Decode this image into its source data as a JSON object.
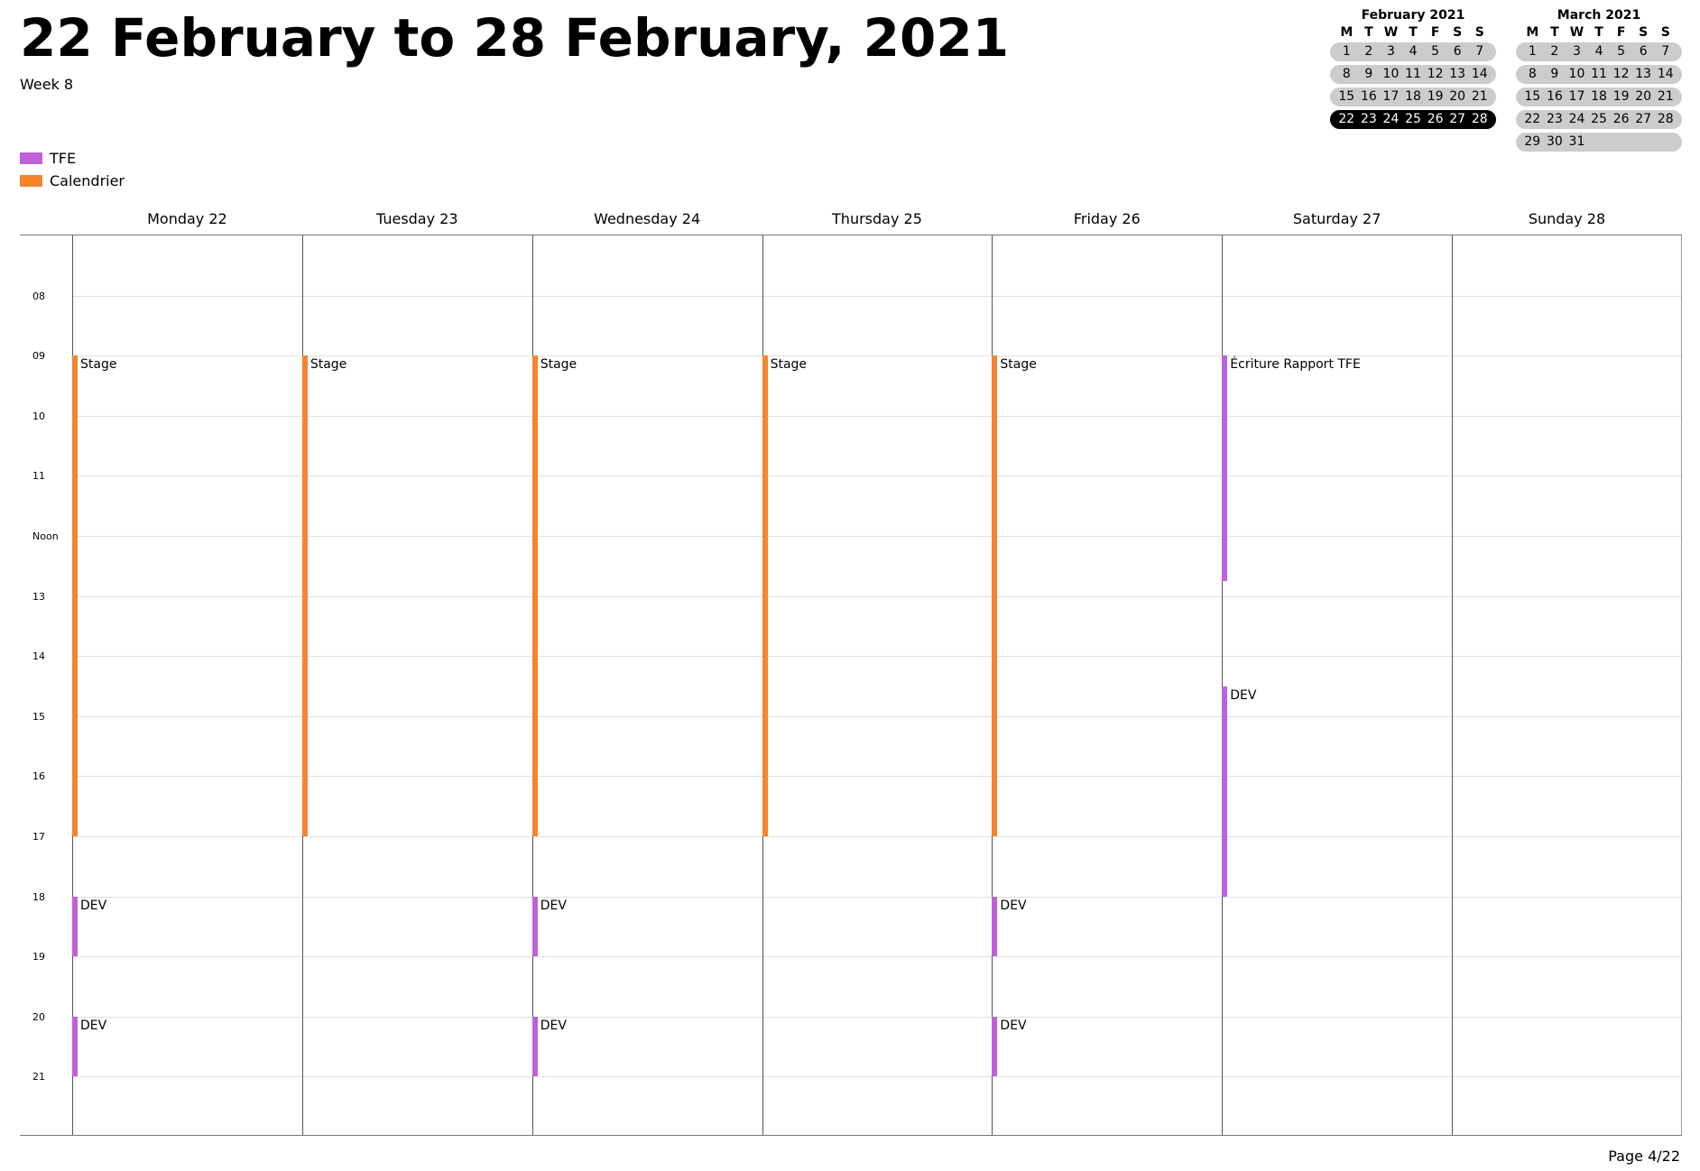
{
  "header": {
    "title": "22 February to 28 February, 2021",
    "subtitle": "Week 8"
  },
  "legend": [
    {
      "label": "TFE",
      "color": "#c061d9"
    },
    {
      "label": "Calendrier",
      "color": "#f5842f"
    }
  ],
  "mini_calendars": [
    {
      "title": "February 2021",
      "dow": [
        "M",
        "T",
        "W",
        "T",
        "F",
        "S",
        "S"
      ],
      "weeks": [
        [
          "1",
          "2",
          "3",
          "4",
          "5",
          "6",
          "7"
        ],
        [
          "8",
          "9",
          "10",
          "11",
          "12",
          "13",
          "14"
        ],
        [
          "15",
          "16",
          "17",
          "18",
          "19",
          "20",
          "21"
        ],
        [
          "22",
          "23",
          "24",
          "25",
          "26",
          "27",
          "28"
        ]
      ],
      "current_week": 3
    },
    {
      "title": "March 2021",
      "dow": [
        "M",
        "T",
        "W",
        "T",
        "F",
        "S",
        "S"
      ],
      "weeks": [
        [
          "1",
          "2",
          "3",
          "4",
          "5",
          "6",
          "7"
        ],
        [
          "8",
          "9",
          "10",
          "11",
          "12",
          "13",
          "14"
        ],
        [
          "15",
          "16",
          "17",
          "18",
          "19",
          "20",
          "21"
        ],
        [
          "22",
          "23",
          "24",
          "25",
          "26",
          "27",
          "28"
        ],
        [
          "29",
          "30",
          "31",
          "",
          "",
          "",
          ""
        ]
      ],
      "current_week": -1
    }
  ],
  "days": [
    "Monday 22",
    "Tuesday 23",
    "Wednesday 24",
    "Thursday 25",
    "Friday 26",
    "Saturday 27",
    "Sunday 28"
  ],
  "hours": [
    "08",
    "09",
    "10",
    "11",
    "Noon",
    "13",
    "14",
    "15",
    "16",
    "17",
    "18",
    "19",
    "20",
    "21"
  ],
  "events": [
    {
      "day": 0,
      "start": 9,
      "end": 17,
      "label": "Stage",
      "color": "#f5842f"
    },
    {
      "day": 1,
      "start": 9,
      "end": 17,
      "label": "Stage",
      "color": "#f5842f"
    },
    {
      "day": 2,
      "start": 9,
      "end": 17,
      "label": "Stage",
      "color": "#f5842f"
    },
    {
      "day": 3,
      "start": 9,
      "end": 17,
      "label": "Stage",
      "color": "#f5842f"
    },
    {
      "day": 4,
      "start": 9,
      "end": 17,
      "label": "Stage",
      "color": "#f5842f"
    },
    {
      "day": 5,
      "start": 9,
      "end": 12.75,
      "label": "Écriture Rapport TFE",
      "color": "#c061d9"
    },
    {
      "day": 5,
      "start": 14.5,
      "end": 18,
      "label": "DEV",
      "color": "#c061d9"
    },
    {
      "day": 0,
      "start": 18,
      "end": 19,
      "label": "DEV",
      "color": "#c061d9"
    },
    {
      "day": 2,
      "start": 18,
      "end": 19,
      "label": "DEV",
      "color": "#c061d9"
    },
    {
      "day": 4,
      "start": 18,
      "end": 19,
      "label": "DEV",
      "color": "#c061d9"
    },
    {
      "day": 0,
      "start": 20,
      "end": 21,
      "label": "DEV",
      "color": "#c061d9"
    },
    {
      "day": 2,
      "start": 20,
      "end": 21,
      "label": "DEV",
      "color": "#c061d9"
    },
    {
      "day": 4,
      "start": 20,
      "end": 21,
      "label": "DEV",
      "color": "#c061d9"
    }
  ],
  "footer": {
    "page": "Page 4/22"
  }
}
